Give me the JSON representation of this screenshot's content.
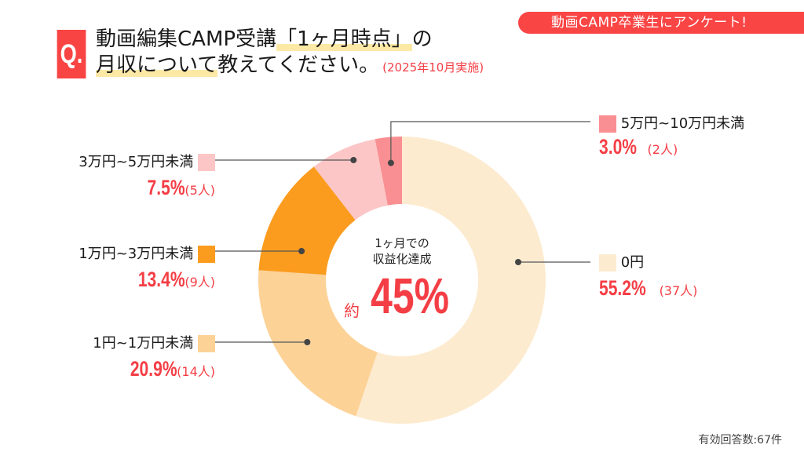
{
  "header": {
    "badge": "動画CAMP卒業生にアンケート!",
    "q_mark": "Q.",
    "title_line1_pre": "動画編集CAMP受講",
    "title_line1_hl": "「1ヶ月時点」",
    "title_line1_post": "の",
    "title_line2_hl": "月収について",
    "title_line2_post": "教えてください。",
    "date": "(2025年10月実施)"
  },
  "center": {
    "line1": "1ヶ月での",
    "line2": "収益化達成",
    "prefix": "約",
    "value": "45%"
  },
  "footer": "有効回答数:67件",
  "chart_data": {
    "type": "pie",
    "variant": "donut",
    "title": "動画編集CAMP受講「1ヶ月時点」の月収について教えてください。",
    "start": "top",
    "direction": "clockwise",
    "total_label": "有効回答数:67件",
    "slices": [
      {
        "label": "0円",
        "percent": 55.2,
        "count_label": "(37人)",
        "count": 37,
        "color": "#fdebd0"
      },
      {
        "label": "1円~1万円未満",
        "percent": 20.9,
        "count_label": "(14人)",
        "count": 14,
        "color": "#fdd297"
      },
      {
        "label": "1万円~3万円未満",
        "percent": 13.4,
        "count_label": "(9人)",
        "count": 9,
        "color": "#fb9c1f"
      },
      {
        "label": "3万円~5万円未満",
        "percent": 7.5,
        "count_label": "(5人)",
        "count": 5,
        "color": "#fcc6c6"
      },
      {
        "label": "5万円~10万円未満",
        "percent": 3.0,
        "count_label": "(2人)",
        "count": 2,
        "color": "#f98f92"
      }
    ]
  },
  "colors": {
    "accent": "#f43e45",
    "badge": "#fa4545",
    "highlight": "#fde9a6",
    "leader": "#555555"
  }
}
